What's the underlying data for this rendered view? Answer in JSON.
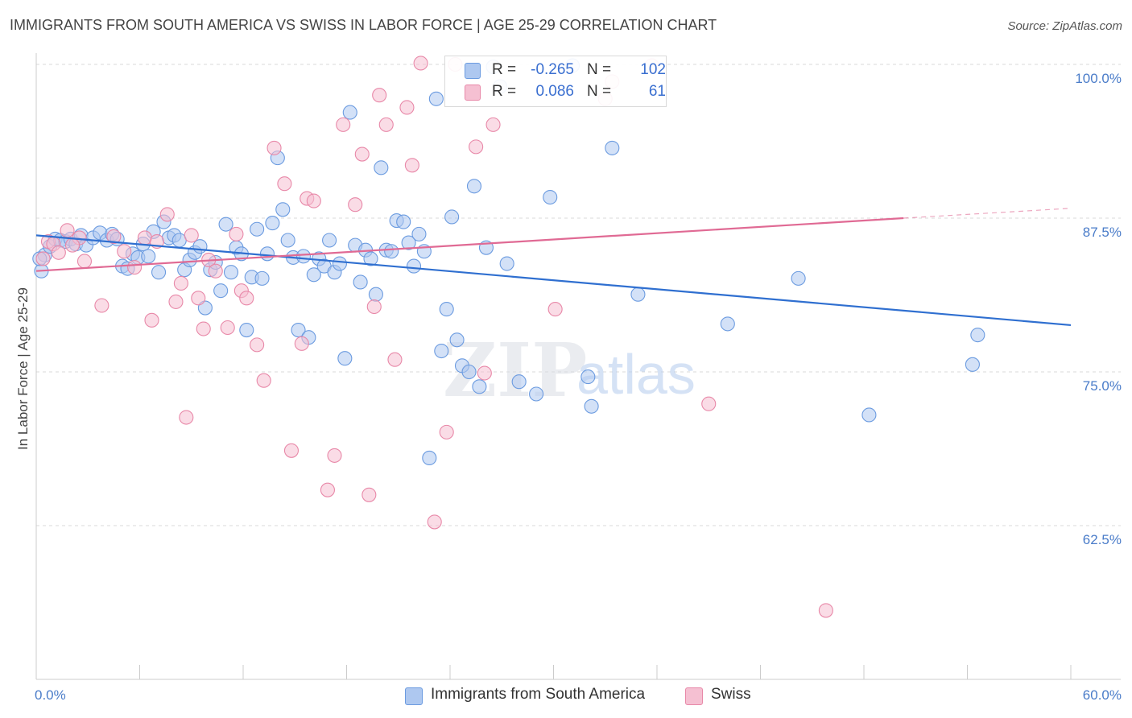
{
  "title": "IMMIGRANTS FROM SOUTH AMERICA VS SWISS IN LABOR FORCE | AGE 25-29 CORRELATION CHART",
  "source": "Source: ZipAtlas.com",
  "watermark": {
    "zip": "ZIP",
    "atlas": "atlas"
  },
  "colors": {
    "blue": "#6b9be0",
    "blue_fill": "#aec8f0",
    "blue_line": "#2f6fd0",
    "pink": "#e888a8",
    "pink_fill": "#f5c0d2",
    "pink_line": "#e06a94",
    "axis_label": "#4a7cc9",
    "grid": "#d8d8d8"
  },
  "legend": {
    "rows": [
      {
        "r_label": "R =",
        "r_value": "-0.265",
        "n_label": "N =",
        "n_value": "102"
      },
      {
        "r_label": "R =",
        "r_value": "0.086",
        "n_label": "N =",
        "n_value": "61"
      }
    ]
  },
  "bottom_legend": [
    {
      "label": "Immigrants from South America"
    },
    {
      "label": "Swiss"
    }
  ],
  "chart_data": {
    "type": "scatter",
    "title": "IMMIGRANTS FROM SOUTH AMERICA VS SWISS IN LABOR FORCE | AGE 25-29 CORRELATION CHART",
    "xlabel": "",
    "ylabel": "In Labor Force | Age 25-29",
    "xlim": [
      0,
      60
    ],
    "ylim": [
      52,
      100
    ],
    "x_tick_labels": [
      {
        "value": 0,
        "label": "0.0%"
      },
      {
        "value": 60,
        "label": "60.0%"
      }
    ],
    "y_tick_labels": [
      {
        "value": 100,
        "label": "100.0%"
      },
      {
        "value": 87.5,
        "label": "87.5%"
      },
      {
        "value": 75,
        "label": "75.0%"
      },
      {
        "value": 62.5,
        "label": "62.5%"
      }
    ],
    "grid": true,
    "series": [
      {
        "name": "Immigrants from South America",
        "R": -0.265,
        "N": 102,
        "trend": {
          "x": [
            0,
            60
          ],
          "y": [
            86.1,
            78.8
          ]
        },
        "points": [
          [
            0.3,
            83.2
          ],
          [
            0.5,
            84.5
          ],
          [
            0.8,
            85.2
          ],
          [
            1.1,
            85.8
          ],
          [
            1.4,
            85.7
          ],
          [
            1.7,
            85.6
          ],
          [
            2.0,
            85.8
          ],
          [
            2.3,
            85.4
          ],
          [
            2.6,
            86.1
          ],
          [
            2.9,
            85.3
          ],
          [
            3.3,
            85.9
          ],
          [
            3.7,
            86.3
          ],
          [
            4.1,
            85.7
          ],
          [
            4.4,
            86.2
          ],
          [
            4.7,
            85.8
          ],
          [
            5.0,
            83.6
          ],
          [
            5.3,
            83.4
          ],
          [
            5.6,
            84.6
          ],
          [
            5.9,
            84.3
          ],
          [
            6.2,
            85.4
          ],
          [
            6.5,
            84.4
          ],
          [
            6.8,
            86.4
          ],
          [
            7.1,
            83.1
          ],
          [
            7.4,
            87.2
          ],
          [
            7.7,
            85.9
          ],
          [
            8.0,
            86.1
          ],
          [
            8.3,
            85.7
          ],
          [
            8.6,
            83.3
          ],
          [
            8.9,
            84.1
          ],
          [
            9.2,
            84.7
          ],
          [
            9.5,
            85.2
          ],
          [
            9.8,
            80.2
          ],
          [
            10.1,
            83.3
          ],
          [
            10.4,
            83.9
          ],
          [
            10.7,
            81.6
          ],
          [
            11.0,
            87.0
          ],
          [
            11.3,
            83.1
          ],
          [
            11.6,
            85.1
          ],
          [
            11.9,
            84.6
          ],
          [
            12.2,
            78.4
          ],
          [
            12.5,
            82.7
          ],
          [
            12.8,
            86.6
          ],
          [
            13.1,
            82.6
          ],
          [
            13.4,
            84.6
          ],
          [
            13.7,
            87.1
          ],
          [
            14.0,
            92.4
          ],
          [
            14.3,
            88.2
          ],
          [
            14.6,
            85.7
          ],
          [
            14.9,
            84.3
          ],
          [
            15.2,
            78.4
          ],
          [
            15.5,
            84.4
          ],
          [
            15.8,
            77.8
          ],
          [
            16.1,
            82.9
          ],
          [
            16.4,
            84.2
          ],
          [
            16.7,
            83.6
          ],
          [
            17.0,
            85.7
          ],
          [
            17.3,
            83.1
          ],
          [
            17.6,
            83.8
          ],
          [
            17.9,
            76.1
          ],
          [
            18.2,
            96.1
          ],
          [
            18.5,
            85.3
          ],
          [
            18.8,
            82.3
          ],
          [
            19.1,
            84.9
          ],
          [
            19.4,
            84.2
          ],
          [
            19.7,
            81.3
          ],
          [
            20.0,
            91.6
          ],
          [
            20.3,
            84.9
          ],
          [
            20.6,
            84.8
          ],
          [
            20.9,
            87.3
          ],
          [
            21.3,
            87.2
          ],
          [
            21.6,
            85.5
          ],
          [
            21.9,
            83.6
          ],
          [
            22.2,
            86.2
          ],
          [
            22.5,
            84.8
          ],
          [
            22.8,
            68.0
          ],
          [
            23.2,
            97.2
          ],
          [
            23.5,
            76.7
          ],
          [
            23.8,
            80.1
          ],
          [
            24.1,
            87.6
          ],
          [
            24.4,
            77.6
          ],
          [
            24.7,
            75.5
          ],
          [
            25.1,
            75.0
          ],
          [
            25.4,
            90.1
          ],
          [
            25.7,
            73.8
          ],
          [
            26.1,
            85.1
          ],
          [
            26.5,
            99.8
          ],
          [
            26.9,
            98.2
          ],
          [
            27.3,
            83.8
          ],
          [
            28.0,
            74.2
          ],
          [
            29.0,
            73.2
          ],
          [
            29.8,
            89.2
          ],
          [
            31.1,
            99.9
          ],
          [
            32.0,
            74.6
          ],
          [
            32.2,
            72.2
          ],
          [
            33.4,
            93.2
          ],
          [
            34.9,
            81.3
          ],
          [
            40.1,
            78.9
          ],
          [
            44.2,
            82.6
          ],
          [
            48.3,
            71.5
          ],
          [
            54.3,
            75.6
          ],
          [
            54.6,
            78.0
          ],
          [
            0.2,
            84.2
          ]
        ]
      },
      {
        "name": "Swiss",
        "R": 0.086,
        "N": 61,
        "trend": {
          "x": [
            0,
            50.3
          ],
          "y": [
            83.2,
            87.5
          ]
        },
        "trend_dashed": {
          "x": [
            50.3,
            60
          ],
          "y": [
            87.5,
            88.3
          ]
        },
        "points": [
          [
            0.4,
            84.2
          ],
          [
            0.7,
            85.6
          ],
          [
            1.0,
            85.4
          ],
          [
            1.3,
            84.7
          ],
          [
            1.8,
            86.5
          ],
          [
            2.5,
            85.9
          ],
          [
            2.8,
            84.0
          ],
          [
            3.8,
            80.4
          ],
          [
            4.5,
            86.0
          ],
          [
            5.1,
            84.8
          ],
          [
            5.7,
            83.5
          ],
          [
            6.3,
            85.9
          ],
          [
            6.7,
            79.2
          ],
          [
            7.0,
            85.6
          ],
          [
            7.6,
            87.8
          ],
          [
            8.1,
            80.7
          ],
          [
            8.4,
            82.2
          ],
          [
            8.7,
            71.3
          ],
          [
            9.0,
            86.1
          ],
          [
            9.4,
            81.0
          ],
          [
            9.7,
            78.5
          ],
          [
            10.0,
            84.1
          ],
          [
            10.4,
            83.2
          ],
          [
            11.1,
            78.6
          ],
          [
            11.6,
            86.2
          ],
          [
            11.9,
            81.6
          ],
          [
            12.2,
            81.0
          ],
          [
            12.8,
            77.2
          ],
          [
            13.2,
            74.3
          ],
          [
            13.8,
            93.2
          ],
          [
            14.4,
            90.3
          ],
          [
            14.8,
            68.6
          ],
          [
            15.4,
            77.3
          ],
          [
            15.7,
            89.1
          ],
          [
            16.1,
            88.9
          ],
          [
            16.9,
            65.4
          ],
          [
            17.3,
            68.2
          ],
          [
            17.8,
            95.1
          ],
          [
            18.5,
            88.6
          ],
          [
            18.9,
            92.7
          ],
          [
            19.3,
            65.0
          ],
          [
            19.6,
            80.3
          ],
          [
            19.9,
            97.5
          ],
          [
            20.3,
            95.1
          ],
          [
            20.8,
            76.0
          ],
          [
            21.5,
            96.5
          ],
          [
            21.8,
            91.8
          ],
          [
            22.3,
            100.1
          ],
          [
            23.1,
            62.8
          ],
          [
            23.8,
            70.1
          ],
          [
            24.3,
            100.0
          ],
          [
            25.5,
            93.3
          ],
          [
            26.0,
            74.9
          ],
          [
            26.5,
            95.1
          ],
          [
            30.1,
            80.1
          ],
          [
            33.0,
            97.2
          ],
          [
            33.4,
            98.6
          ],
          [
            35.7,
            99.9
          ],
          [
            39.0,
            72.4
          ],
          [
            45.8,
            55.6
          ],
          [
            2.1,
            85.3
          ]
        ]
      }
    ]
  }
}
